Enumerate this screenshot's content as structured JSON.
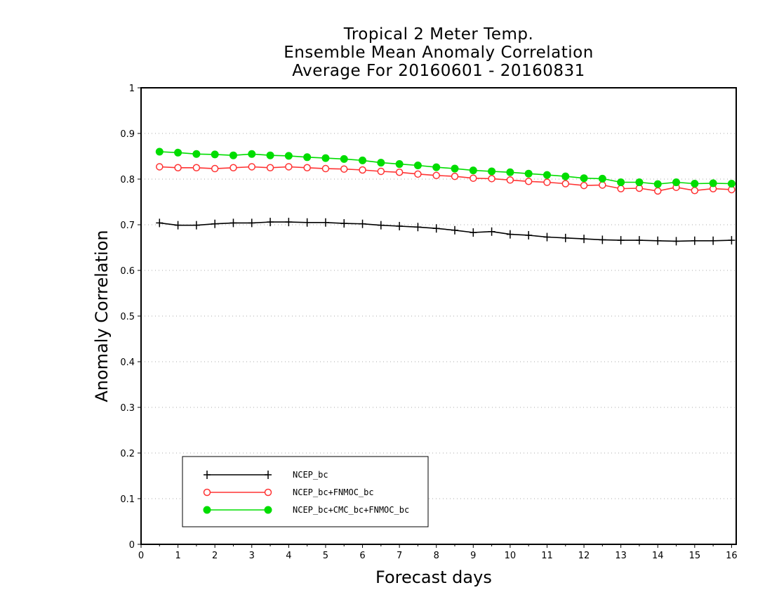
{
  "chart_data": {
    "type": "line",
    "title": [
      "Tropical 2 Meter Temp.",
      "Ensemble Mean Anomaly Correlation",
      "Average For 20160601 - 20160831"
    ],
    "xlabel": "Forecast days",
    "ylabel": "Anomaly Correlation",
    "xlim": [
      0,
      16.125
    ],
    "ylim": [
      0,
      1
    ],
    "xticks": [
      "0",
      "1",
      "2",
      "3",
      "4",
      "5",
      "6",
      "7",
      "8",
      "9",
      "10",
      "11",
      "12",
      "13",
      "14",
      "15",
      "16"
    ],
    "yticks": [
      "0",
      "0.1",
      "0.2",
      "0.3",
      "0.4",
      "0.5",
      "0.6",
      "0.7",
      "0.8",
      "0.9",
      "1"
    ],
    "grid": "horizontal-dotted",
    "legend_position": "bottom-left",
    "x": [
      0.5,
      1,
      1.5,
      2,
      2.5,
      3,
      3.5,
      4,
      4.5,
      5,
      5.5,
      6,
      6.5,
      7,
      7.5,
      8,
      8.5,
      9,
      9.5,
      10,
      10.5,
      11,
      11.5,
      12,
      12.5,
      13,
      13.5,
      14,
      14.5,
      15,
      15.5,
      16
    ],
    "series": [
      {
        "name": "NCEP_bc",
        "color": "#000000",
        "marker": "plus",
        "values": [
          0.704,
          0.699,
          0.699,
          0.702,
          0.704,
          0.704,
          0.706,
          0.706,
          0.705,
          0.705,
          0.703,
          0.702,
          0.699,
          0.697,
          0.695,
          0.692,
          0.688,
          0.683,
          0.685,
          0.679,
          0.677,
          0.673,
          0.671,
          0.669,
          0.667,
          0.666,
          0.666,
          0.665,
          0.664,
          0.665,
          0.665,
          0.666
        ]
      },
      {
        "name": "NCEP_bc+FNMOC_bc",
        "color": "#ff3333",
        "marker": "open-circle",
        "values": [
          0.827,
          0.825,
          0.825,
          0.823,
          0.825,
          0.827,
          0.825,
          0.827,
          0.825,
          0.823,
          0.822,
          0.82,
          0.817,
          0.815,
          0.811,
          0.808,
          0.806,
          0.802,
          0.801,
          0.798,
          0.795,
          0.793,
          0.79,
          0.786,
          0.787,
          0.779,
          0.78,
          0.774,
          0.782,
          0.775,
          0.779,
          0.777
        ]
      },
      {
        "name": "NCEP_bc+CMC_bc+FNMOC_bc",
        "color": "#00dd00",
        "marker": "filled-circle",
        "values": [
          0.86,
          0.858,
          0.855,
          0.854,
          0.852,
          0.855,
          0.852,
          0.851,
          0.848,
          0.846,
          0.844,
          0.841,
          0.836,
          0.833,
          0.83,
          0.826,
          0.823,
          0.819,
          0.817,
          0.815,
          0.812,
          0.809,
          0.806,
          0.802,
          0.801,
          0.793,
          0.793,
          0.789,
          0.793,
          0.79,
          0.791,
          0.79
        ]
      }
    ]
  }
}
